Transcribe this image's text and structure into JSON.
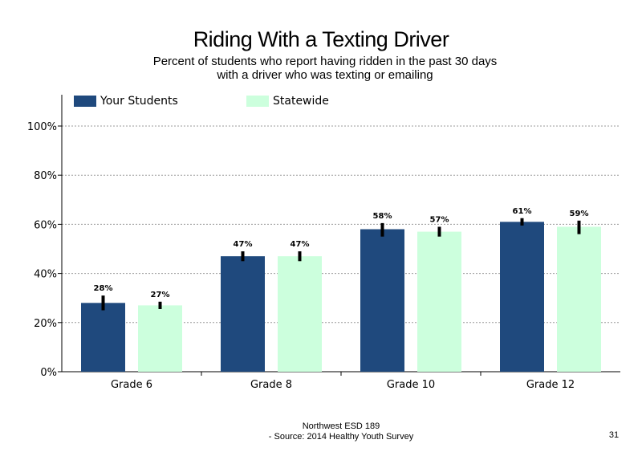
{
  "page": {
    "title": "Riding With a Texting Driver",
    "subtitle": "Percent of students who report having ridden in the past 30 days with a driver who was texting or emailing",
    "footer_line1": "Northwest ESD  189",
    "footer_line2": "- Source: 2014 Healthy  Youth Survey",
    "page_number": "31"
  },
  "colors": {
    "your_students": "#1f497d",
    "statewide": "#ccffdd",
    "error_bar": "#000000",
    "grid": "#999999"
  },
  "chart_data": {
    "type": "bar",
    "title": "Riding With a Texting Driver",
    "categories": [
      "Grade 6",
      "Grade 8",
      "Grade 10",
      "Grade 12"
    ],
    "series": [
      {
        "name": "Your Students",
        "values": [
          28,
          47,
          58,
          61
        ],
        "labels": [
          "28%",
          "47%",
          "58%",
          "61%"
        ],
        "error_low": [
          25,
          45,
          55,
          59.5
        ],
        "error_high": [
          31,
          49,
          60.5,
          62.5
        ]
      },
      {
        "name": "Statewide",
        "values": [
          27,
          47,
          57,
          59
        ],
        "labels": [
          "27%",
          "47%",
          "57%",
          "59%"
        ],
        "error_low": [
          25.5,
          45,
          55,
          56
        ],
        "error_high": [
          28.5,
          49,
          59,
          61.5
        ]
      }
    ],
    "ylim": [
      0,
      100
    ],
    "yticks": [
      0,
      20,
      40,
      60,
      80,
      100
    ],
    "ytick_labels": [
      "0%",
      "20%",
      "40%",
      "60%",
      "80%",
      "100%"
    ],
    "grid": true,
    "legend_position": "top"
  }
}
